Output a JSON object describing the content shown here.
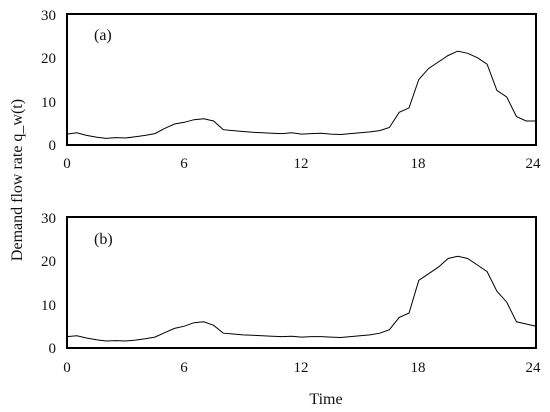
{
  "chart_data": [
    {
      "type": "line",
      "panel_label": "(a)",
      "ylabel": "Demand flow rate q_w(t)",
      "xlabel": "",
      "xlim": [
        0,
        24
      ],
      "ylim": [
        0,
        30
      ],
      "x_ticks": [
        "0",
        "6",
        "12",
        "18",
        "24"
      ],
      "y_ticks": [
        "0",
        "10",
        "20",
        "30"
      ],
      "x_tick_values": [
        0,
        6,
        12,
        18,
        24
      ],
      "y_tick_values": [
        0,
        10,
        20,
        30
      ],
      "grid": false,
      "series": [
        {
          "color": "#000000",
          "x": [
            0,
            0.5,
            1,
            1.5,
            2,
            2.5,
            3,
            3.5,
            4,
            4.5,
            5,
            5.5,
            6,
            6.5,
            7,
            7.5,
            8,
            8.5,
            9,
            9.5,
            10,
            10.5,
            11,
            11.5,
            12,
            12.5,
            13,
            13.5,
            14,
            14.5,
            15,
            15.5,
            16,
            16.5,
            17,
            17.5,
            18,
            18.5,
            19,
            19.5,
            20,
            20.5,
            21,
            21.5,
            22,
            22.5,
            23,
            23.5,
            24
          ],
          "y": [
            2.5,
            2.8,
            2.2,
            1.8,
            1.5,
            1.7,
            1.6,
            1.9,
            2.2,
            2.6,
            3.8,
            4.8,
            5.2,
            5.8,
            6.0,
            5.5,
            3.5,
            3.3,
            3.1,
            2.9,
            2.8,
            2.7,
            2.6,
            2.8,
            2.5,
            2.6,
            2.7,
            2.5,
            2.4,
            2.6,
            2.8,
            3.0,
            3.3,
            4.0,
            7.5,
            8.5,
            15.0,
            17.5,
            19.0,
            20.5,
            21.5,
            21.0,
            20.0,
            18.5,
            12.5,
            11.0,
            6.5,
            5.5,
            5.5
          ]
        }
      ]
    },
    {
      "type": "line",
      "panel_label": "(b)",
      "ylabel": "",
      "xlabel": "Time",
      "xlim": [
        0,
        24
      ],
      "ylim": [
        0,
        30
      ],
      "x_ticks": [
        "0",
        "6",
        "12",
        "18",
        "24"
      ],
      "y_ticks": [
        "0",
        "10",
        "20",
        "30"
      ],
      "x_tick_values": [
        0,
        6,
        12,
        18,
        24
      ],
      "y_tick_values": [
        0,
        10,
        20,
        30
      ],
      "grid": false,
      "series": [
        {
          "color": "#000000",
          "x": [
            0,
            0.5,
            1,
            1.5,
            2,
            2.5,
            3,
            3.5,
            4,
            4.5,
            5,
            5.5,
            6,
            6.5,
            7,
            7.5,
            8,
            8.5,
            9,
            9.5,
            10,
            10.5,
            11,
            11.5,
            12,
            12.5,
            13,
            13.5,
            14,
            14.5,
            15,
            15.5,
            16,
            16.5,
            17,
            17.5,
            18,
            18.5,
            19,
            19.5,
            20,
            20.5,
            21,
            21.5,
            22,
            22.5,
            23,
            23.5,
            24
          ],
          "y": [
            2.6,
            2.8,
            2.3,
            1.9,
            1.6,
            1.7,
            1.6,
            1.8,
            2.1,
            2.5,
            3.5,
            4.5,
            5.0,
            5.8,
            6.0,
            5.2,
            3.4,
            3.2,
            3.0,
            2.9,
            2.8,
            2.7,
            2.6,
            2.7,
            2.5,
            2.6,
            2.6,
            2.5,
            2.4,
            2.6,
            2.8,
            3.0,
            3.4,
            4.2,
            7.0,
            8.0,
            15.5,
            17.0,
            18.5,
            20.5,
            21.0,
            20.5,
            19.0,
            17.5,
            13.0,
            10.5,
            6.0,
            5.5,
            5.0
          ]
        }
      ]
    }
  ]
}
